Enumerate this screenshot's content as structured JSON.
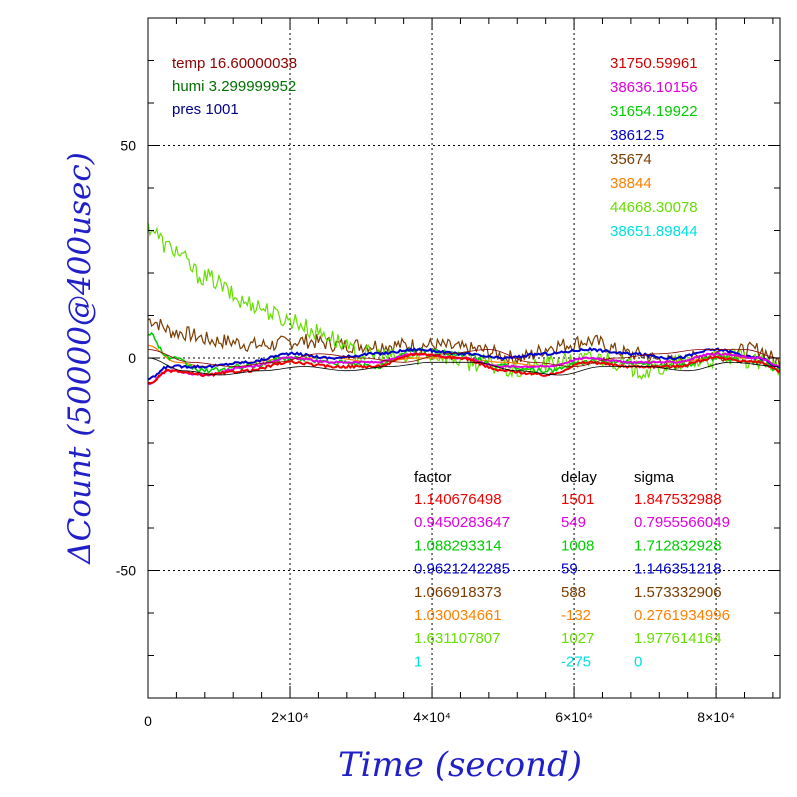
{
  "chart_data": {
    "type": "line",
    "xlabel": "Time (second)",
    "ylabel": "ΔCount (50000@400usec)",
    "xlim": [
      0,
      89000
    ],
    "ylim": [
      -80,
      80
    ],
    "x_tick_labels": [
      "0",
      "2×10⁴",
      "4×10⁴",
      "6×10⁴",
      "8×10⁴"
    ],
    "x_ticks": [
      0,
      20000,
      40000,
      60000,
      80000
    ],
    "y_tick_labels": [
      "50",
      "0",
      "-50"
    ],
    "y_ticks": [
      50,
      0,
      -50
    ],
    "grid": true,
    "env": [
      {
        "text": "temp 16.60000038",
        "color": "#8b0000"
      },
      {
        "text": "humi 3.299999952",
        "color": "#007000"
      },
      {
        "text": "pres 1001",
        "color": "#000080"
      }
    ],
    "legend_values": [
      {
        "text": "31750.59961",
        "color": "#cc0000"
      },
      {
        "text": "38636.10156",
        "color": "#e000e0"
      },
      {
        "text": "31654.19922",
        "color": "#00cc00"
      },
      {
        "text": "38612.5",
        "color": "#0000cc"
      },
      {
        "text": "35674",
        "color": "#7a3c00"
      },
      {
        "text": "38844",
        "color": "#ff8000"
      },
      {
        "text": "44668.30078",
        "color": "#66dd00"
      },
      {
        "text": "38651.89844",
        "color": "#00e0e0"
      }
    ],
    "table": {
      "headers": [
        "factor",
        "delay",
        "sigma"
      ],
      "rows": [
        {
          "factor": "1.140676498",
          "delay": "1501",
          "sigma": "1.847532988",
          "color": "#ee0000"
        },
        {
          "factor": "0.9450283647",
          "delay": "549",
          "sigma": "0.7955566049",
          "color": "#e000e0"
        },
        {
          "factor": "1.088293314",
          "delay": "1008",
          "sigma": "1.712832928",
          "color": "#00cc00"
        },
        {
          "factor": "0.9621242285",
          "delay": "59",
          "sigma": "1.146351218",
          "color": "#0000cc"
        },
        {
          "factor": "1.066918373",
          "delay": "588",
          "sigma": "1.573332906",
          "color": "#7a3c00"
        },
        {
          "factor": "1.030034661",
          "delay": "-132",
          "sigma": "0.2761934996",
          "color": "#ff8000"
        },
        {
          "factor": "1.631107807",
          "delay": "1027",
          "sigma": "1.977614164",
          "color": "#66dd00"
        },
        {
          "factor": "1",
          "delay": "-275",
          "sigma": "0",
          "color": "#00e0e0"
        }
      ]
    },
    "series": [
      {
        "color": "#7a3c00",
        "noise": 1.8,
        "width": 1.2,
        "x": [
          0,
          4000,
          10000,
          16000,
          22000,
          28000,
          34000,
          40000,
          46000,
          52000,
          58000,
          62000,
          68000,
          74000,
          80000,
          86000,
          89000
        ],
        "y": [
          9,
          6,
          4,
          3,
          4,
          3,
          3,
          3,
          2,
          0,
          3,
          4,
          1,
          -1,
          1,
          2,
          -1
        ]
      },
      {
        "color": "#66dd00",
        "noise": 2.2,
        "width": 1.2,
        "x": [
          0,
          3000,
          8000,
          14000,
          20000,
          24000,
          30000,
          36000,
          40000,
          46000,
          52000,
          58000,
          64000,
          70000,
          76000,
          82000,
          89000
        ],
        "y": [
          31,
          26,
          19,
          13,
          9,
          6,
          1,
          0,
          1,
          -1,
          -3,
          -1,
          0,
          -3,
          -1,
          0,
          -2
        ]
      },
      {
        "color": "#ff8000",
        "noise": 0,
        "width": 1.2,
        "x": [
          0,
          4000,
          8000,
          14000,
          20000,
          26000,
          32000,
          38000,
          44000,
          50000,
          56000,
          62000,
          68000,
          74000,
          80000,
          86000,
          89000
        ],
        "y": [
          3,
          -1,
          -2,
          -1,
          0,
          0,
          -1,
          0,
          0,
          -1,
          -2,
          0,
          -1,
          -1,
          0,
          0,
          -2
        ]
      },
      {
        "color": "#00cc00",
        "noise": 0.6,
        "width": 1.5,
        "x": [
          0,
          3000,
          8000,
          14000,
          20000,
          26000,
          32000,
          38000,
          44000,
          50000,
          56000,
          62000,
          68000,
          74000,
          80000,
          86000,
          89000
        ],
        "y": [
          6,
          0,
          -3,
          -2,
          0,
          -1,
          -2,
          2,
          1,
          -2,
          -3,
          -1,
          -1,
          -2,
          0,
          -1,
          -3
        ]
      },
      {
        "color": "#0000cc",
        "noise": 0.3,
        "width": 2,
        "x": [
          0,
          3000,
          8000,
          14000,
          20000,
          26000,
          32000,
          38000,
          44000,
          50000,
          56000,
          62000,
          68000,
          74000,
          80000,
          86000,
          89000
        ],
        "y": [
          -5,
          -2,
          -2,
          -1,
          1,
          0,
          1,
          2,
          1,
          0,
          1,
          2,
          1,
          0,
          2,
          0,
          -2
        ]
      },
      {
        "color": "#e000e0",
        "noise": 0.2,
        "width": 2,
        "x": [
          0,
          3000,
          8000,
          14000,
          20000,
          26000,
          32000,
          38000,
          44000,
          50000,
          56000,
          62000,
          68000,
          74000,
          80000,
          86000,
          89000
        ],
        "y": [
          -6,
          -3,
          -4,
          -2,
          0,
          -1,
          -1,
          1,
          0,
          -2,
          -2,
          0,
          -1,
          -1,
          1,
          0,
          -2
        ]
      },
      {
        "color": "#ee0000",
        "noise": 0.3,
        "width": 2,
        "x": [
          0,
          3000,
          8000,
          14000,
          20000,
          26000,
          32000,
          38000,
          44000,
          50000,
          56000,
          62000,
          68000,
          74000,
          80000,
          86000,
          89000
        ],
        "y": [
          -6,
          -3,
          -4,
          -3,
          -1,
          -2,
          -2,
          1,
          0,
          -3,
          -4,
          -1,
          -2,
          -2,
          0,
          -1,
          -3
        ]
      },
      {
        "color": "#000000",
        "noise": 0,
        "width": 0.8,
        "x": [
          0,
          5000,
          10000,
          16000,
          22000,
          28000,
          34000,
          40000,
          46000,
          52000,
          58000,
          64000,
          70000,
          76000,
          82000,
          89000
        ],
        "y": [
          0,
          -3,
          -4,
          -3,
          -2,
          -3,
          -2,
          -1,
          -1,
          -3,
          -4,
          -2,
          -2,
          -3,
          -1,
          -2
        ]
      },
      {
        "color": "#8b0000",
        "noise": 0,
        "width": 0.8,
        "x": [
          0,
          6000,
          12000,
          18000,
          24000,
          30000,
          36000,
          42000,
          48000,
          54000,
          60000,
          66000,
          72000,
          78000,
          84000,
          89000
        ],
        "y": [
          2,
          -1,
          -2,
          -1,
          1,
          0,
          -1,
          1,
          2,
          -1,
          -2,
          0,
          1,
          2,
          2,
          0
        ]
      }
    ]
  }
}
